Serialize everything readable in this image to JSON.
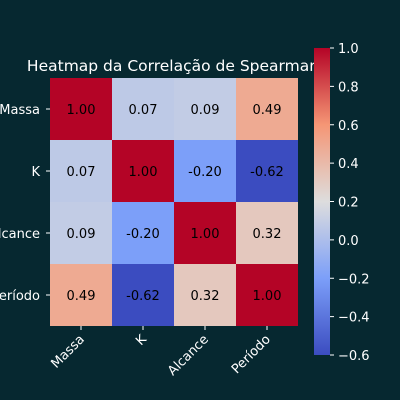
{
  "chart_data": {
    "type": "heatmap",
    "title": "Heatmap da Correlação de Spearman",
    "rows": [
      "Massa",
      "K",
      "Alcance",
      "Período"
    ],
    "columns": [
      "Massa",
      "K",
      "Alcance",
      "Período"
    ],
    "values": [
      [
        1.0,
        0.07,
        0.09,
        0.49
      ],
      [
        0.07,
        1.0,
        -0.2,
        -0.62
      ],
      [
        0.09,
        -0.2,
        1.0,
        0.32
      ],
      [
        0.49,
        -0.62,
        0.32,
        1.0
      ]
    ],
    "value_format": "0.00",
    "colormap": "coolwarm",
    "colorbar": {
      "range": [
        -0.6,
        1.0
      ],
      "ticks": [
        1.0,
        0.8,
        0.6,
        0.4,
        0.2,
        0.0,
        -0.2,
        -0.4,
        -0.6
      ],
      "tick_labels": [
        "1.0",
        "0.8",
        "0.6",
        "0.4",
        "0.2",
        "0.0",
        "−0.2",
        "−0.4",
        "−0.6"
      ]
    },
    "colors": {
      "background": "#062830",
      "text": "#ffffff",
      "cell_text": "#000000"
    }
  }
}
